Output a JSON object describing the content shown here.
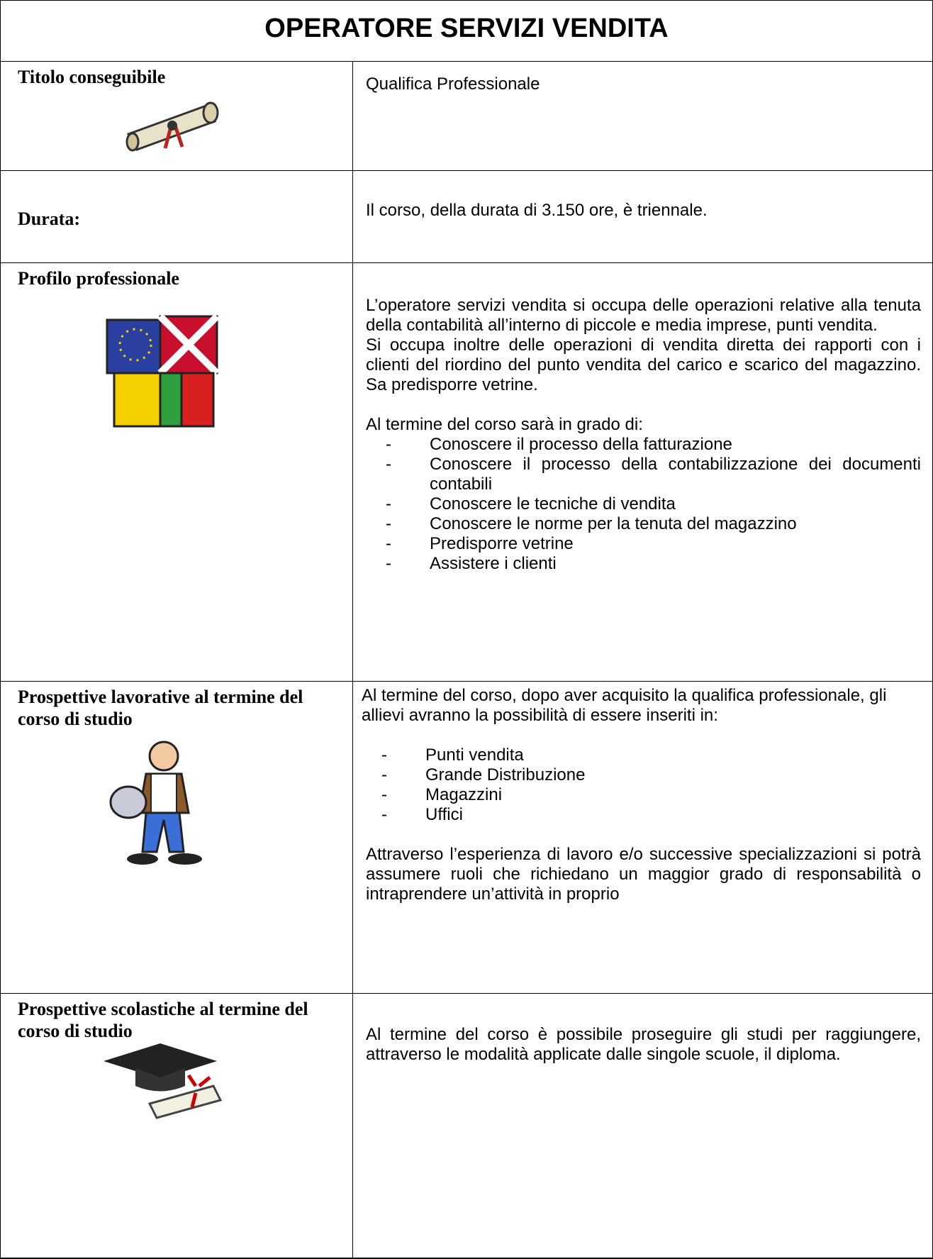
{
  "title": "OPERATORE SERVIZI VENDITA",
  "rows": [
    {
      "label": "Titolo conseguibile",
      "blocks": [
        {
          "p": "Qualifica Professionale"
        }
      ]
    },
    {
      "label": "Durata:",
      "blocks": [
        {
          "p": "Il corso, della durata di 3.150 ore, è triennale."
        }
      ]
    },
    {
      "label": "Profilo professionale",
      "blocks": [
        {
          "p": "L’operatore servizi vendita si occupa delle operazioni relative alla tenuta della contabilità all’interno di piccole e media imprese, punti vendita."
        },
        {
          "p": "Si occupa  inoltre delle operazioni di vendita diretta dei rapporti con i clienti del  riordino del punto vendita del  carico e scarico del magazzino. Sa predisporre vetrine."
        },
        {
          "p": "Al termine del corso sarà in grado di:",
          "gap": true
        },
        {
          "list": [
            "Conoscere il processo della fatturazione",
            "Conoscere il processo della contabilizzazione dei documenti contabili",
            "Conoscere le tecniche di vendita",
            "Conoscere le norme per la tenuta del magazzino",
            "Predisporre vetrine",
            "Assistere i clienti"
          ]
        }
      ]
    },
    {
      "label": "Prospettive lavorative al termine del corso di studio",
      "blocks": [
        {
          "p": "Al termine del corso, dopo aver acquisito la qualifica professionale, gli allievi avranno la possibilità di essere inseriti in:",
          "left": true
        },
        {
          "list": [
            "Punti vendita",
            "Grande Distribuzione",
            "Magazzini",
            "Uffici"
          ],
          "gap": true
        },
        {
          "p": "Attraverso l’esperienza di lavoro e/o successive specializzazioni si potrà assumere ruoli che richiedano un maggior grado di responsabilità o intraprendere un’attività in proprio",
          "gap": true
        }
      ]
    },
    {
      "label": "Prospettive scolastiche al termine del corso di studio",
      "blocks": [
        {
          "p": "Al termine del corso è possibile proseguire gli studi per raggiungere, attraverso le modalità applicate dalle singole scuole, il diploma."
        }
      ]
    }
  ]
}
